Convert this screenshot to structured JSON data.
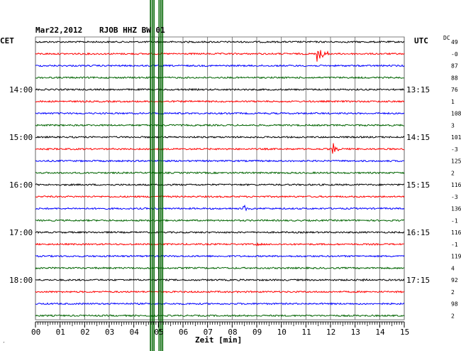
{
  "header": {
    "date": "Mar22,2012",
    "station": "RJOB HHZ BW 01",
    "left_tz": "CET",
    "right_tz": "UTC",
    "dc_label": "DC"
  },
  "xlabel": "Zeit [min]",
  "corner_mark": "′",
  "colors": {
    "trace_cycle": [
      "#000000",
      "#ff0000",
      "#0000ff",
      "#006400"
    ],
    "grid": "#606060",
    "spike": "#006400"
  },
  "chart_data": {
    "type": "line",
    "title": "Mar22,2012  RJOB HHZ BW 01",
    "xlabel": "Zeit [min]",
    "xlim": [
      0,
      15
    ],
    "x_ticks": [
      "00",
      "01",
      "02",
      "03",
      "04",
      "05",
      "06",
      "07",
      "08",
      "09",
      "10",
      "11",
      "12",
      "13",
      "14",
      "15"
    ],
    "row_minutes": 15,
    "left_time_labels": [
      {
        "row": 4,
        "text": "14:00"
      },
      {
        "row": 8,
        "text": "15:00"
      },
      {
        "row": 12,
        "text": "16:00"
      },
      {
        "row": 16,
        "text": "17:00"
      },
      {
        "row": 20,
        "text": "18:00"
      }
    ],
    "right_time_labels": [
      {
        "row": 4,
        "text": "13:15"
      },
      {
        "row": 8,
        "text": "14:15"
      },
      {
        "row": 12,
        "text": "15:15"
      },
      {
        "row": 16,
        "text": "16:15"
      },
      {
        "row": 20,
        "text": "17:15"
      }
    ],
    "dc_offsets": [
      "49",
      "-0",
      "87",
      "88",
      "76",
      "1",
      "108",
      "3",
      "101",
      "-3",
      "125",
      "2",
      "116",
      "-3",
      "136",
      "-1",
      "116",
      "-1",
      "119",
      "4",
      "92",
      "2",
      "98",
      "2"
    ],
    "events": [
      {
        "row": 1,
        "minute": 11.5,
        "amplitude": 12,
        "duration_min": 0.7
      },
      {
        "row": 9,
        "minute": 12.1,
        "amplitude": 9,
        "duration_min": 0.4
      },
      {
        "row": 14,
        "minute": 8.5,
        "amplitude": 5,
        "duration_min": 0.4
      },
      {
        "row": 17,
        "minute": 9.0,
        "amplitude": 3,
        "duration_min": 0.3
      },
      {
        "row": 20,
        "minute": 13.3,
        "amplitude": 2,
        "duration_min": 0.3
      }
    ],
    "vertical_spikes_minutes": [
      4.75,
      5.1
    ]
  }
}
